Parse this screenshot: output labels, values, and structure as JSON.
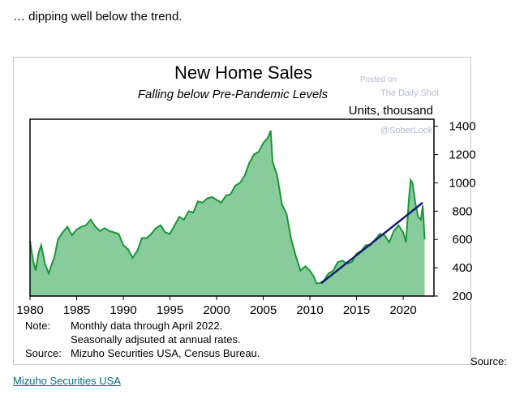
{
  "intro_text": "… dipping well below the trend.",
  "source_label": "Source:",
  "source_link": "Mizuho Securities USA",
  "watermark": {
    "line1": "Posted on",
    "line2": "The Daily Shot",
    "line3": "@SoberLook"
  },
  "colors": {
    "fill": "#87cc9a",
    "line": "#1a9638",
    "trend": "#141b78",
    "link": "#0b6b7a"
  },
  "chart_data": {
    "type": "area",
    "title": "New Home Sales",
    "subtitle": "Falling below Pre-Pandemic Levels",
    "ylabel": "Units, thousand",
    "ylim": [
      200,
      1450
    ],
    "xlim": [
      1980,
      2023.3
    ],
    "yticks": [
      "1400",
      "1200",
      "1000",
      "800",
      "600",
      "400",
      "200"
    ],
    "xticks": [
      "1980",
      "1985",
      "1990",
      "1995",
      "2000",
      "2005",
      "2010",
      "2015",
      "2020"
    ],
    "series": [
      {
        "x": [
          1980,
          1980.3,
          1980.6,
          1980.9,
          1981.2,
          1981.6,
          1982.0,
          1982.3,
          1982.6,
          1983.0,
          1983.5,
          1984.0,
          1984.5,
          1985.0,
          1985.5,
          1986.0,
          1986.5,
          1987.0,
          1987.5,
          1988.0,
          1988.5,
          1989.0,
          1989.5,
          1990.0,
          1990.5,
          1991.0,
          1991.5,
          1992.0,
          1992.5,
          1993.0,
          1993.5,
          1994.0,
          1994.5,
          1995.0,
          1995.5,
          1996.0,
          1996.5,
          1997.0,
          1997.5,
          1998.0,
          1998.5,
          1999.0,
          1999.5,
          2000.0,
          2000.5,
          2001.0,
          2001.5,
          2002.0,
          2002.5,
          2003.0,
          2003.5,
          2004.0,
          2004.5,
          2005.0,
          2005.5,
          2005.8,
          2006.0,
          2006.5,
          2007.0,
          2007.5,
          2008.0,
          2008.5,
          2009.0,
          2009.5,
          2010.0,
          2010.4,
          2010.7,
          2011.0,
          2011.5,
          2012.0,
          2012.5,
          2013.0,
          2013.5,
          2014.0,
          2014.5,
          2015.0,
          2015.5,
          2016.0,
          2016.5,
          2017.0,
          2017.5,
          2018.0,
          2018.5,
          2019.0,
          2019.5,
          2020.0,
          2020.3,
          2020.6,
          2020.8,
          2021.0,
          2021.3,
          2021.6,
          2021.9,
          2022.1,
          2022.3
        ],
        "values": [
          590,
          460,
          380,
          500,
          560,
          430,
          360,
          420,
          470,
          600,
          650,
          690,
          630,
          670,
          690,
          700,
          740,
          690,
          660,
          680,
          660,
          650,
          640,
          560,
          530,
          470,
          520,
          610,
          610,
          640,
          680,
          700,
          650,
          640,
          700,
          760,
          740,
          800,
          790,
          870,
          860,
          890,
          900,
          880,
          860,
          910,
          920,
          980,
          1000,
          1050,
          1140,
          1200,
          1220,
          1280,
          1320,
          1370,
          1150,
          1050,
          850,
          780,
          600,
          480,
          380,
          410,
          380,
          340,
          290,
          290,
          310,
          360,
          380,
          440,
          450,
          430,
          440,
          500,
          520,
          560,
          560,
          600,
          640,
          630,
          580,
          660,
          700,
          650,
          580,
          870,
          1020,
          1000,
          860,
          760,
          740,
          840,
          600
        ]
      }
    ],
    "trend": {
      "x": [
        2011.2,
        2022.1
      ],
      "values": [
        290,
        860
      ]
    },
    "notes": {
      "note_label": "Note:",
      "note_line1": "Monthly data through April 2022.",
      "note_line2": "Seasonally adjsuted at annual rates.",
      "source_label": "Source:",
      "source_text": "Mizuho Securities USA, Census Bureau."
    }
  }
}
